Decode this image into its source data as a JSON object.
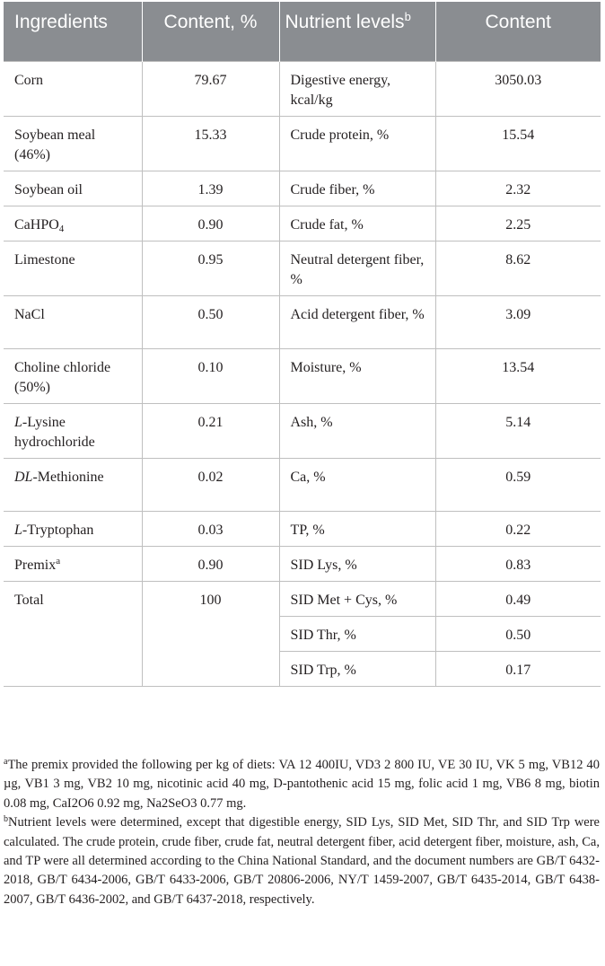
{
  "header": {
    "col1": "Ingredients",
    "col2": "Content, %",
    "col3": "Nutrient levels",
    "col3_sup": "b",
    "col4": "Content"
  },
  "rows": [
    {
      "ingredient": "Corn",
      "content": "79.67",
      "nutrient": "Digestive energy, kcal/kg",
      "value": "3050.03"
    },
    {
      "ingredient": "Soybean meal (46%)",
      "content": "15.33",
      "nutrient": "Crude protein, %",
      "value": "15.54"
    },
    {
      "ingredient": "Soybean oil",
      "content": "1.39",
      "nutrient": "Crude fiber, %",
      "value": "2.32"
    },
    {
      "ingredient_main": "CaHPO",
      "ingredient_sub": "4",
      "content": "0.90",
      "nutrient": "Crude fat, %",
      "value": "2.25"
    },
    {
      "ingredient": "Limestone",
      "content": "0.95",
      "nutrient": "Neutral detergent fiber, %",
      "value": "8.62"
    },
    {
      "ingredient": "NaCl",
      "content": "0.50",
      "nutrient": "Acid detergent fiber, %",
      "value": "3.09"
    },
    {
      "ingredient": "Choline chloride (50%)",
      "content": "0.10",
      "nutrient": "Moisture, %",
      "value": "13.54"
    },
    {
      "ingredient_prefix": "L",
      "ingredient_rest": "-Lysine hydrochloride",
      "content": "0.21",
      "nutrient": "Ash, %",
      "value": "5.14"
    },
    {
      "ingredient_prefix": "DL",
      "ingredient_rest": "-Methionine",
      "content": "0.02",
      "nutrient": "Ca, %",
      "value": "0.59"
    },
    {
      "ingredient_prefix": "L",
      "ingredient_rest": "-Tryptophan",
      "content": "0.03",
      "nutrient": "TP, %",
      "value": "0.22"
    },
    {
      "ingredient_main": "Premix",
      "ingredient_sup": "a",
      "content": "0.90",
      "nutrient": "SID Lys, %",
      "value": "0.83"
    },
    {
      "ingredient": "Total",
      "content": "100",
      "nutrient": "SID Met + Cys, %",
      "value": "0.49"
    },
    {
      "ingredient": "",
      "content": "",
      "nutrient": "SID Thr, %",
      "value": "0.50"
    },
    {
      "ingredient": "",
      "content": "",
      "nutrient": "SID Trp, %",
      "value": "0.17"
    }
  ],
  "footnotes": {
    "a_mark": "a",
    "a_text": "The premix provided the following per kg of diets: VA 12 400IU, VD3 2 800 IU, VE 30 IU, VK 5 mg, VB12 40 µg, VB1 3 mg, VB2 10 mg, nicotinic acid 40 mg, D-pantothenic acid 15 mg, folic acid 1 mg, VB6 8 mg, biotin 0.08 mg, CaI2O6 0.92 mg, Na2SeO3 0.77 mg.",
    "b_mark": "b",
    "b_text": "Nutrient levels were determined, except that digestible energy, SID Lys, SID Met, SID Thr, and SID Trp were calculated. The crude protein, crude fiber, crude fat, neutral detergent fiber, acid detergent fiber, moisture, ash, Ca, and TP were all determined according to the China National Standard, and the document numbers are GB/T 6432-2018, GB/T 6434-2006, GB/T 6433-2006, GB/T 20806-2006, NY/T 1459-2007, GB/T 6435-2014, GB/T 6438-2007, GB/T 6436-2002, and GB/T 6437-2018, respectively."
  }
}
